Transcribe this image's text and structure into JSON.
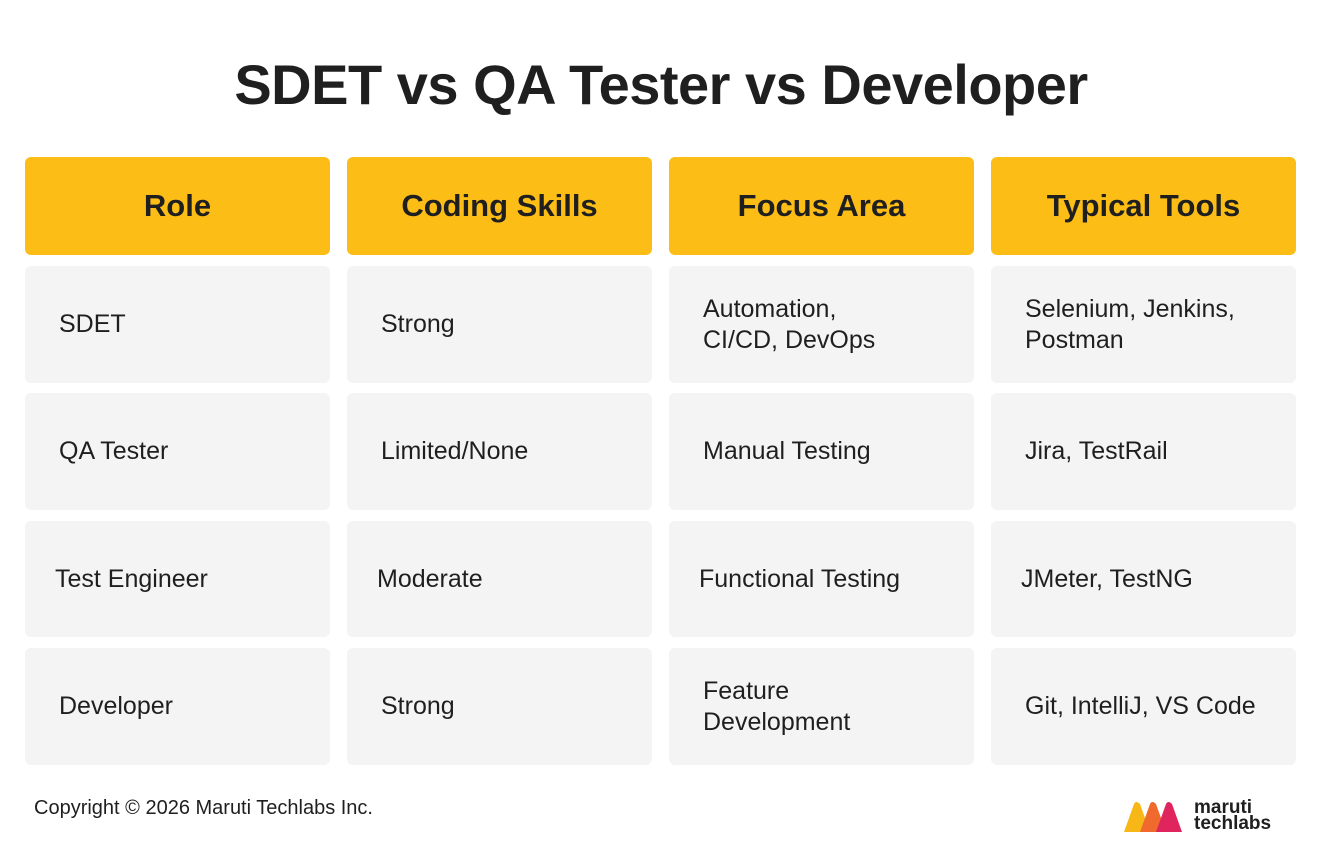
{
  "title": "SDET vs QA Tester vs Developer",
  "table": {
    "headers": [
      "Role",
      "Coding Skills",
      "Focus Area",
      "Typical Tools"
    ],
    "rows": [
      [
        "SDET",
        "Strong",
        "Automation,\nCI/CD, DevOps",
        "Selenium, Jenkins,\nPostman"
      ],
      [
        "QA Tester",
        "Limited/None",
        "Manual Testing",
        "Jira, TestRail"
      ],
      [
        "Test Engineer",
        "Moderate",
        "Functional Testing",
        "JMeter, TestNG"
      ],
      [
        "Developer",
        "Strong",
        "Feature\nDevelopment",
        "Git, IntelliJ, VS Code"
      ]
    ]
  },
  "footer": {
    "copyright": "Copyright © 2026 Maruti Techlabs Inc."
  },
  "logo": {
    "line1": "maruti",
    "line2": "techlabs"
  },
  "colors": {
    "header_bg": "#fbbd16",
    "cell_bg": "#f4f4f4",
    "text": "#1f1f1f"
  }
}
